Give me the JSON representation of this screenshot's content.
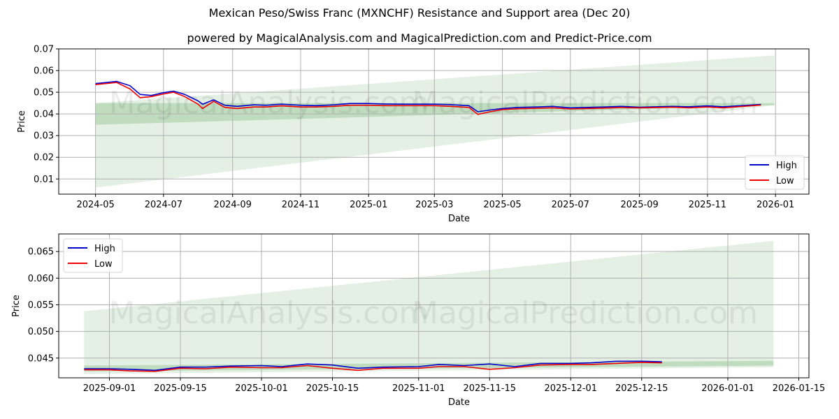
{
  "header": {
    "title": "Mexican Peso/Swiss Franc (MXNCHF) Resistance and Support area (Dec 20)",
    "subtitle": "powered by MagicalAnalysis.com and MagicalPrediction.com and Predict-Price.com"
  },
  "watermarks": {
    "left": "MagicalAnalysis.com",
    "right": "MagicalPrediction.com"
  },
  "colors": {
    "high": "#0000cc",
    "low": "#ee0000",
    "band": "#2e8b2e",
    "grid": "#b0b0b0"
  },
  "chart_data": [
    {
      "type": "line",
      "title": "",
      "xlabel": "Date",
      "ylabel": "Price",
      "ylim": [
        0.003,
        0.07
      ],
      "grid": true,
      "legend_position": "lower right",
      "x_ticks": [
        "2024-05",
        "2024-07",
        "2024-09",
        "2024-11",
        "2025-01",
        "2025-03",
        "2025-05",
        "2025-07",
        "2025-09",
        "2025-11",
        "2026-01"
      ],
      "y_ticks": [
        "0.01",
        "0.02",
        "0.03",
        "0.04",
        "0.05",
        "0.06",
        "0.07"
      ],
      "x": [
        "2024-05-01",
        "2024-05-20",
        "2024-06-01",
        "2024-06-10",
        "2024-06-20",
        "2024-07-01",
        "2024-07-10",
        "2024-07-20",
        "2024-08-01",
        "2024-08-05",
        "2024-08-15",
        "2024-08-25",
        "2024-09-05",
        "2024-09-20",
        "2024-10-01",
        "2024-10-15",
        "2024-11-01",
        "2024-11-15",
        "2024-12-01",
        "2024-12-15",
        "2025-01-01",
        "2025-01-15",
        "2025-02-01",
        "2025-02-15",
        "2025-03-01",
        "2025-03-15",
        "2025-04-01",
        "2025-04-09",
        "2025-04-20",
        "2025-05-01",
        "2025-05-15",
        "2025-06-01",
        "2025-06-15",
        "2025-07-01",
        "2025-07-15",
        "2025-08-01",
        "2025-08-15",
        "2025-09-01",
        "2025-09-15",
        "2025-10-01",
        "2025-10-15",
        "2025-11-01",
        "2025-11-15",
        "2025-12-01",
        "2025-12-19"
      ],
      "series": [
        {
          "name": "High",
          "values": [
            0.054,
            0.055,
            0.053,
            0.049,
            0.0485,
            0.0498,
            0.0505,
            0.049,
            0.046,
            0.0445,
            0.0465,
            0.044,
            0.0435,
            0.0442,
            0.044,
            0.0445,
            0.044,
            0.0438,
            0.0442,
            0.0448,
            0.0448,
            0.0446,
            0.0445,
            0.0445,
            0.0445,
            0.0443,
            0.0438,
            0.041,
            0.0418,
            0.0425,
            0.043,
            0.0432,
            0.0435,
            0.0428,
            0.043,
            0.0432,
            0.0435,
            0.0431,
            0.0433,
            0.0435,
            0.0433,
            0.0437,
            0.0433,
            0.0438,
            0.0444
          ]
        },
        {
          "name": "Low",
          "values": [
            0.0535,
            0.0545,
            0.0515,
            0.0475,
            0.048,
            0.0492,
            0.05,
            0.048,
            0.0445,
            0.0425,
            0.0458,
            0.043,
            0.0425,
            0.0432,
            0.0432,
            0.0437,
            0.0432,
            0.0432,
            0.0435,
            0.044,
            0.044,
            0.0438,
            0.0438,
            0.0438,
            0.0438,
            0.0435,
            0.043,
            0.0398,
            0.041,
            0.042,
            0.0424,
            0.0426,
            0.0428,
            0.0423,
            0.0425,
            0.0427,
            0.0429,
            0.0428,
            0.0429,
            0.0431,
            0.0428,
            0.0432,
            0.0428,
            0.0434,
            0.0441
          ]
        }
      ],
      "bands": [
        {
          "name": "support-band-dark",
          "x": [
            "2024-05-01",
            "2025-12-31"
          ],
          "lower_start": 0.035,
          "lower_end": 0.044,
          "upper_start": 0.045,
          "upper_end": 0.045
        },
        {
          "name": "resistance-support-cone",
          "x": [
            "2024-05-01",
            "2025-12-31"
          ],
          "lower_start": 0.006,
          "lower_end": 0.044,
          "upper_start": 0.045,
          "upper_end": 0.067
        }
      ],
      "legend": [
        "High",
        "Low"
      ]
    },
    {
      "type": "line",
      "title": "",
      "xlabel": "Date",
      "ylabel": "Price",
      "ylim": [
        0.0413,
        0.0683
      ],
      "grid": true,
      "legend_position": "upper left",
      "x_ticks": [
        "2025-09-01",
        "2025-09-15",
        "2025-10-01",
        "2025-10-15",
        "2025-11-01",
        "2025-11-15",
        "2025-12-01",
        "2025-12-15",
        "2026-01-01",
        "2026-01-15"
      ],
      "y_ticks": [
        "0.045",
        "0.050",
        "0.055",
        "0.060",
        "0.065"
      ],
      "x": [
        "2025-08-27",
        "2025-09-01",
        "2025-09-05",
        "2025-09-10",
        "2025-09-15",
        "2025-09-20",
        "2025-09-25",
        "2025-10-01",
        "2025-10-05",
        "2025-10-10",
        "2025-10-15",
        "2025-10-20",
        "2025-10-25",
        "2025-11-01",
        "2025-11-05",
        "2025-11-10",
        "2025-11-15",
        "2025-11-20",
        "2025-11-25",
        "2025-12-01",
        "2025-12-05",
        "2025-12-10",
        "2025-12-15",
        "2025-12-19"
      ],
      "series": [
        {
          "name": "High",
          "values": [
            0.043,
            0.043,
            0.0429,
            0.0427,
            0.0433,
            0.0433,
            0.0435,
            0.0436,
            0.0434,
            0.0439,
            0.0437,
            0.0431,
            0.0433,
            0.0434,
            0.0438,
            0.0436,
            0.0439,
            0.0434,
            0.044,
            0.044,
            0.0441,
            0.0444,
            0.0444,
            0.0443
          ]
        },
        {
          "name": "Low",
          "values": [
            0.0428,
            0.0428,
            0.0426,
            0.0425,
            0.0431,
            0.043,
            0.0433,
            0.0432,
            0.0432,
            0.0436,
            0.0431,
            0.0427,
            0.0431,
            0.0431,
            0.0434,
            0.0434,
            0.0429,
            0.0432,
            0.0437,
            0.0438,
            0.0438,
            0.044,
            0.0442,
            0.0441
          ]
        }
      ],
      "bands": [
        {
          "name": "resistance-support-cone",
          "x": [
            "2025-08-27",
            "2026-01-10"
          ],
          "lower_start": 0.042,
          "lower_end": 0.0433,
          "upper_start": 0.0538,
          "upper_end": 0.067
        },
        {
          "name": "support-band-dark",
          "x": [
            "2025-08-27",
            "2026-01-10"
          ],
          "lower_start": 0.0425,
          "lower_end": 0.0436,
          "upper_start": 0.0436,
          "upper_end": 0.0445
        }
      ],
      "legend": [
        "High",
        "Low"
      ]
    }
  ]
}
